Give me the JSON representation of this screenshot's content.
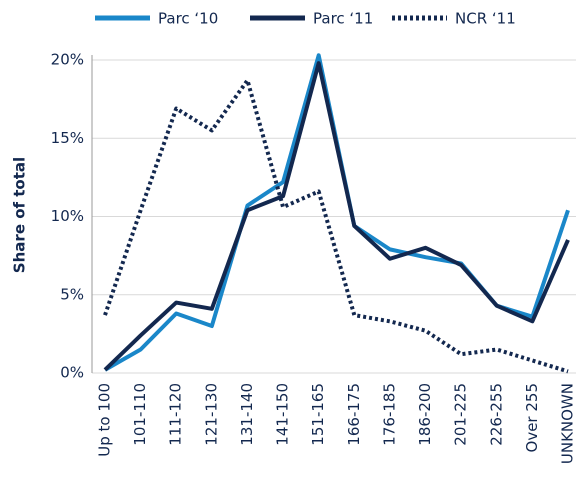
{
  "chart_data": {
    "type": "line",
    "ylabel": "Share of total",
    "categories": [
      "Up to 100",
      "101-110",
      "111-120",
      "121-130",
      "131-140",
      "141-150",
      "151-165",
      "166-175",
      "176-185",
      "186-200",
      "201-225",
      "226-255",
      "Over 255",
      "UNKNOWN"
    ],
    "series": [
      {
        "name": "Parc ‘10",
        "color": "#1a87c9",
        "style": "solid",
        "values": [
          0.2,
          1.5,
          3.8,
          3.0,
          10.7,
          12.2,
          20.3,
          9.4,
          7.9,
          7.4,
          7.0,
          4.3,
          3.6,
          10.4
        ]
      },
      {
        "name": "Parc ‘11",
        "color": "#13284f",
        "style": "solid",
        "values": [
          0.2,
          2.4,
          4.5,
          4.1,
          10.4,
          11.3,
          19.8,
          9.4,
          7.3,
          8.0,
          6.9,
          4.3,
          3.3,
          8.5
        ]
      },
      {
        "name": "NCR ‘11",
        "color": "#13284f",
        "style": "dotted",
        "values": [
          3.7,
          10.4,
          16.9,
          15.5,
          18.7,
          10.6,
          11.6,
          3.7,
          3.3,
          2.7,
          1.2,
          1.5,
          0.8,
          0.1
        ]
      }
    ],
    "ylim": [
      0,
      20
    ],
    "yticks": [
      {
        "value": 0,
        "label": "0%"
      },
      {
        "value": 5,
        "label": "5%"
      },
      {
        "value": 10,
        "label": "10%"
      },
      {
        "value": 15,
        "label": "15%"
      },
      {
        "value": 20,
        "label": "20%"
      }
    ],
    "grid": true,
    "legend": "top"
  }
}
